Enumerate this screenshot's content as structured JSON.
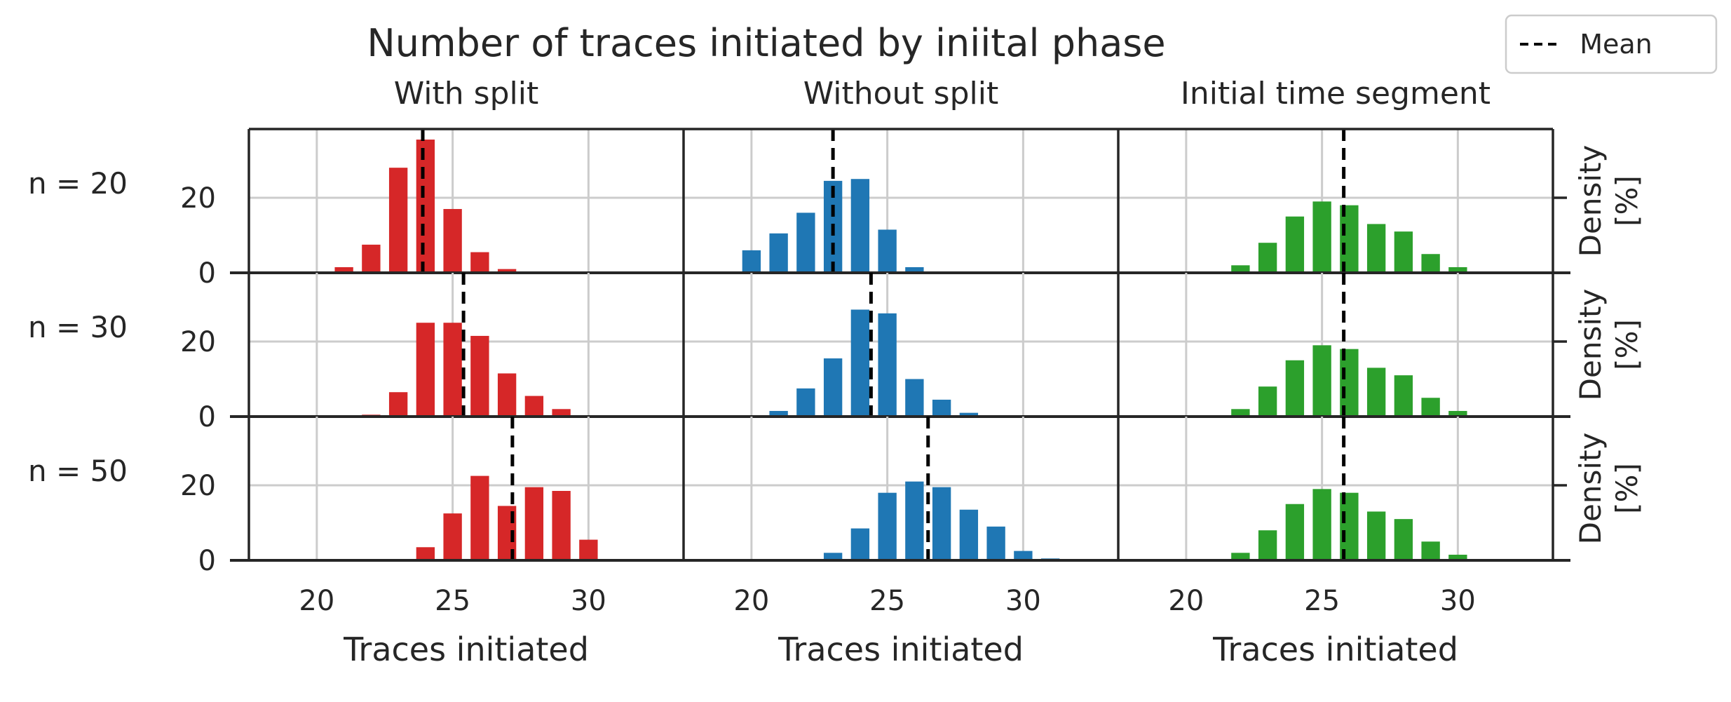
{
  "figure": {
    "title": "Number of traces initiated by iniital phase",
    "legend": {
      "label": "Mean",
      "placement": "top-right"
    }
  },
  "chart_data": {
    "type": "bar",
    "grid": true,
    "xlim": [
      17.5,
      33.5
    ],
    "ylim": [
      0,
      37
    ],
    "xticks": [
      20,
      25,
      30
    ],
    "yticks": [
      0,
      20
    ],
    "columns": [
      "With split",
      "Without split",
      "Initial time segment"
    ],
    "rows": [
      "n = 20",
      "n = 30",
      "n = 50"
    ],
    "xlabel": "Traces initiated",
    "ylabel": "Density\n[%]",
    "colors": [
      "#d62728",
      "#1f77b4",
      "#2ca02c"
    ],
    "mean_line_color": "#000000",
    "panels": [
      [
        {
          "x": [
            21,
            22,
            23,
            24,
            25,
            26,
            27
          ],
          "values": [
            1.5,
            7.5,
            28,
            35.5,
            17,
            5.5,
            1
          ],
          "mean": 23.9
        },
        {
          "x": [
            20,
            21,
            22,
            23,
            24,
            25,
            26
          ],
          "values": [
            6,
            10.5,
            16,
            24.5,
            25,
            11.5,
            1.5
          ],
          "mean": 23.0
        },
        {
          "x": [
            22,
            23,
            24,
            25,
            26,
            27,
            28,
            29,
            30
          ],
          "values": [
            2,
            8,
            15,
            19,
            18,
            13,
            11,
            5,
            1.5
          ],
          "mean": 25.8
        }
      ],
      [
        {
          "x": [
            22,
            23,
            24,
            25,
            26,
            27,
            28,
            29
          ],
          "values": [
            0.5,
            6.5,
            25,
            25,
            21.5,
            11.5,
            5.5,
            2
          ],
          "mean": 25.4
        },
        {
          "x": [
            21,
            22,
            23,
            24,
            25,
            26,
            27,
            28
          ],
          "values": [
            1.5,
            7.5,
            15.5,
            28.5,
            27.5,
            10,
            4.5,
            1
          ],
          "mean": 24.4
        },
        {
          "x": [
            22,
            23,
            24,
            25,
            26,
            27,
            28,
            29,
            30
          ],
          "values": [
            2,
            8,
            15,
            19,
            18,
            13,
            11,
            5,
            1.5
          ],
          "mean": 25.8
        }
      ],
      [
        {
          "x": [
            24,
            25,
            26,
            27,
            28,
            29,
            30
          ],
          "values": [
            3.5,
            12.5,
            22.5,
            14.5,
            19.5,
            18.5,
            5.5
          ],
          "mean": 27.2
        },
        {
          "x": [
            23,
            24,
            25,
            26,
            27,
            28,
            29,
            30,
            31
          ],
          "values": [
            2,
            8.5,
            18,
            21,
            19.5,
            13.5,
            9,
            2.5,
            0.5
          ],
          "mean": 26.5
        },
        {
          "x": [
            22,
            23,
            24,
            25,
            26,
            27,
            28,
            29,
            30
          ],
          "values": [
            2,
            8,
            15,
            19,
            18,
            13,
            11,
            5,
            1.5
          ],
          "mean": 25.8
        }
      ]
    ]
  }
}
